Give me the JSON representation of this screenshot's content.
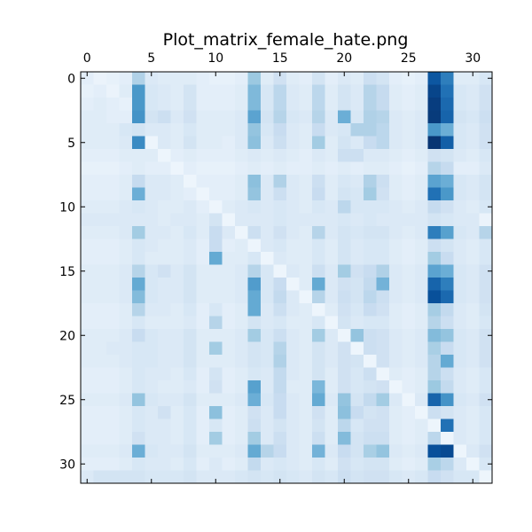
{
  "chart_data": {
    "type": "heatmap",
    "title": "Plot_matrix_female_hate.png",
    "colormap": "Blues",
    "x_axis_position": "top",
    "x_ticks": [
      0,
      5,
      10,
      15,
      20,
      25,
      30
    ],
    "y_ticks": [
      0,
      5,
      10,
      15,
      20,
      25,
      30
    ],
    "xlim": [
      -0.5,
      31.5
    ],
    "ylim": [
      31.5,
      -0.5
    ],
    "value_range": [
      0,
      1
    ],
    "size": 32,
    "matrix": [
      [
        0.1,
        0.06,
        0.08,
        0.1,
        0.32,
        0.14,
        0.12,
        0.12,
        0.12,
        0.1,
        0.08,
        0.08,
        0.1,
        0.38,
        0.12,
        0.2,
        0.12,
        0.1,
        0.18,
        0.1,
        0.14,
        0.12,
        0.22,
        0.18,
        0.1,
        0.08,
        0.1,
        0.85,
        0.7,
        0.12,
        0.12,
        0.16
      ],
      [
        0.08,
        0.1,
        0.06,
        0.12,
        0.6,
        0.16,
        0.14,
        0.12,
        0.18,
        0.1,
        0.1,
        0.1,
        0.12,
        0.45,
        0.16,
        0.28,
        0.14,
        0.12,
        0.28,
        0.12,
        0.18,
        0.14,
        0.3,
        0.25,
        0.12,
        0.1,
        0.12,
        0.92,
        0.75,
        0.16,
        0.14,
        0.2
      ],
      [
        0.1,
        0.12,
        0.1,
        0.08,
        0.6,
        0.16,
        0.14,
        0.12,
        0.18,
        0.1,
        0.1,
        0.1,
        0.12,
        0.45,
        0.16,
        0.28,
        0.14,
        0.12,
        0.28,
        0.12,
        0.18,
        0.14,
        0.3,
        0.25,
        0.12,
        0.1,
        0.12,
        0.95,
        0.78,
        0.16,
        0.14,
        0.2
      ],
      [
        0.12,
        0.12,
        0.1,
        0.1,
        0.62,
        0.18,
        0.22,
        0.14,
        0.2,
        0.12,
        0.12,
        0.12,
        0.14,
        0.55,
        0.18,
        0.3,
        0.16,
        0.14,
        0.3,
        0.14,
        0.5,
        0.16,
        0.32,
        0.3,
        0.14,
        0.12,
        0.14,
        0.96,
        0.8,
        0.18,
        0.16,
        0.22
      ],
      [
        0.12,
        0.12,
        0.12,
        0.16,
        0.18,
        0.14,
        0.14,
        0.12,
        0.16,
        0.12,
        0.12,
        0.12,
        0.14,
        0.4,
        0.16,
        0.24,
        0.14,
        0.12,
        0.24,
        0.14,
        0.16,
        0.32,
        0.32,
        0.28,
        0.14,
        0.12,
        0.14,
        0.6,
        0.5,
        0.16,
        0.14,
        0.2
      ],
      [
        0.12,
        0.12,
        0.12,
        0.14,
        0.65,
        0.05,
        0.14,
        0.12,
        0.18,
        0.12,
        0.12,
        0.1,
        0.14,
        0.42,
        0.14,
        0.22,
        0.14,
        0.12,
        0.36,
        0.12,
        0.18,
        0.14,
        0.24,
        0.28,
        0.14,
        0.12,
        0.14,
        0.98,
        0.82,
        0.16,
        0.14,
        0.2
      ],
      [
        0.1,
        0.1,
        0.1,
        0.12,
        0.12,
        0.12,
        0.05,
        0.1,
        0.12,
        0.1,
        0.1,
        0.1,
        0.12,
        0.14,
        0.12,
        0.14,
        0.12,
        0.1,
        0.14,
        0.12,
        0.22,
        0.22,
        0.14,
        0.14,
        0.12,
        0.1,
        0.12,
        0.2,
        0.18,
        0.14,
        0.12,
        0.16
      ],
      [
        0.08,
        0.08,
        0.08,
        0.1,
        0.12,
        0.1,
        0.1,
        0.05,
        0.1,
        0.08,
        0.08,
        0.08,
        0.1,
        0.12,
        0.1,
        0.12,
        0.1,
        0.1,
        0.12,
        0.1,
        0.12,
        0.1,
        0.12,
        0.12,
        0.1,
        0.08,
        0.1,
        0.3,
        0.25,
        0.1,
        0.1,
        0.14
      ],
      [
        0.1,
        0.1,
        0.1,
        0.12,
        0.25,
        0.14,
        0.14,
        0.12,
        0.05,
        0.1,
        0.1,
        0.1,
        0.12,
        0.42,
        0.14,
        0.32,
        0.14,
        0.12,
        0.22,
        0.12,
        0.16,
        0.14,
        0.32,
        0.22,
        0.12,
        0.1,
        0.12,
        0.55,
        0.5,
        0.16,
        0.14,
        0.18
      ],
      [
        0.1,
        0.1,
        0.1,
        0.12,
        0.5,
        0.14,
        0.14,
        0.12,
        0.1,
        0.05,
        0.1,
        0.1,
        0.12,
        0.4,
        0.14,
        0.22,
        0.14,
        0.12,
        0.24,
        0.12,
        0.18,
        0.16,
        0.36,
        0.2,
        0.12,
        0.1,
        0.12,
        0.75,
        0.6,
        0.16,
        0.14,
        0.18
      ],
      [
        0.12,
        0.12,
        0.12,
        0.14,
        0.16,
        0.14,
        0.12,
        0.12,
        0.14,
        0.1,
        0.05,
        0.12,
        0.14,
        0.16,
        0.14,
        0.16,
        0.14,
        0.12,
        0.16,
        0.14,
        0.28,
        0.16,
        0.16,
        0.16,
        0.14,
        0.12,
        0.14,
        0.25,
        0.2,
        0.14,
        0.12,
        0.16
      ],
      [
        0.14,
        0.14,
        0.14,
        0.14,
        0.14,
        0.14,
        0.12,
        0.14,
        0.14,
        0.12,
        0.18,
        0.05,
        0.14,
        0.14,
        0.14,
        0.16,
        0.14,
        0.14,
        0.14,
        0.14,
        0.16,
        0.14,
        0.16,
        0.14,
        0.14,
        0.14,
        0.14,
        0.18,
        0.16,
        0.14,
        0.14,
        0.06
      ],
      [
        0.12,
        0.12,
        0.12,
        0.14,
        0.36,
        0.14,
        0.14,
        0.12,
        0.16,
        0.12,
        0.24,
        0.14,
        0.05,
        0.22,
        0.14,
        0.2,
        0.14,
        0.12,
        0.3,
        0.14,
        0.18,
        0.16,
        0.18,
        0.18,
        0.14,
        0.12,
        0.14,
        0.7,
        0.56,
        0.16,
        0.14,
        0.3
      ],
      [
        0.1,
        0.1,
        0.1,
        0.12,
        0.16,
        0.14,
        0.12,
        0.12,
        0.14,
        0.1,
        0.24,
        0.1,
        0.12,
        0.05,
        0.14,
        0.16,
        0.12,
        0.12,
        0.16,
        0.12,
        0.18,
        0.14,
        0.16,
        0.16,
        0.12,
        0.1,
        0.12,
        0.22,
        0.18,
        0.14,
        0.12,
        0.16
      ],
      [
        0.1,
        0.1,
        0.1,
        0.12,
        0.16,
        0.12,
        0.12,
        0.12,
        0.14,
        0.1,
        0.52,
        0.12,
        0.12,
        0.16,
        0.05,
        0.14,
        0.12,
        0.12,
        0.16,
        0.12,
        0.18,
        0.14,
        0.16,
        0.16,
        0.12,
        0.1,
        0.12,
        0.36,
        0.24,
        0.14,
        0.12,
        0.16
      ],
      [
        0.12,
        0.12,
        0.12,
        0.14,
        0.3,
        0.16,
        0.2,
        0.14,
        0.18,
        0.12,
        0.12,
        0.12,
        0.14,
        0.3,
        0.16,
        0.05,
        0.14,
        0.12,
        0.22,
        0.14,
        0.36,
        0.2,
        0.24,
        0.32,
        0.14,
        0.12,
        0.14,
        0.55,
        0.5,
        0.16,
        0.14,
        0.2
      ],
      [
        0.12,
        0.12,
        0.12,
        0.14,
        0.52,
        0.16,
        0.14,
        0.14,
        0.18,
        0.12,
        0.12,
        0.12,
        0.14,
        0.58,
        0.16,
        0.24,
        0.05,
        0.12,
        0.52,
        0.14,
        0.2,
        0.18,
        0.26,
        0.48,
        0.14,
        0.12,
        0.14,
        0.8,
        0.7,
        0.16,
        0.14,
        0.2
      ],
      [
        0.12,
        0.12,
        0.12,
        0.14,
        0.44,
        0.16,
        0.14,
        0.14,
        0.18,
        0.12,
        0.12,
        0.12,
        0.14,
        0.52,
        0.16,
        0.26,
        0.14,
        0.05,
        0.3,
        0.14,
        0.22,
        0.18,
        0.28,
        0.22,
        0.14,
        0.12,
        0.14,
        0.88,
        0.78,
        0.16,
        0.14,
        0.2
      ],
      [
        0.1,
        0.1,
        0.1,
        0.12,
        0.3,
        0.14,
        0.14,
        0.12,
        0.16,
        0.1,
        0.16,
        0.1,
        0.12,
        0.52,
        0.14,
        0.22,
        0.14,
        0.12,
        0.05,
        0.12,
        0.2,
        0.16,
        0.24,
        0.2,
        0.12,
        0.1,
        0.12,
        0.35,
        0.26,
        0.14,
        0.12,
        0.18
      ],
      [
        0.1,
        0.1,
        0.1,
        0.12,
        0.16,
        0.12,
        0.12,
        0.12,
        0.14,
        0.1,
        0.3,
        0.1,
        0.12,
        0.18,
        0.14,
        0.16,
        0.12,
        0.12,
        0.16,
        0.05,
        0.18,
        0.14,
        0.16,
        0.16,
        0.12,
        0.1,
        0.12,
        0.3,
        0.22,
        0.14,
        0.12,
        0.16
      ],
      [
        0.12,
        0.12,
        0.12,
        0.14,
        0.24,
        0.16,
        0.14,
        0.14,
        0.18,
        0.12,
        0.12,
        0.12,
        0.14,
        0.36,
        0.16,
        0.22,
        0.14,
        0.12,
        0.36,
        0.14,
        0.05,
        0.4,
        0.22,
        0.2,
        0.14,
        0.12,
        0.14,
        0.44,
        0.4,
        0.16,
        0.14,
        0.2
      ],
      [
        0.12,
        0.12,
        0.14,
        0.14,
        0.16,
        0.16,
        0.14,
        0.14,
        0.18,
        0.12,
        0.36,
        0.12,
        0.14,
        0.18,
        0.16,
        0.3,
        0.14,
        0.12,
        0.18,
        0.14,
        0.2,
        0.05,
        0.22,
        0.2,
        0.14,
        0.12,
        0.14,
        0.34,
        0.24,
        0.16,
        0.14,
        0.2
      ],
      [
        0.12,
        0.12,
        0.12,
        0.14,
        0.16,
        0.16,
        0.14,
        0.14,
        0.18,
        0.12,
        0.12,
        0.12,
        0.14,
        0.18,
        0.16,
        0.32,
        0.14,
        0.12,
        0.18,
        0.14,
        0.2,
        0.18,
        0.05,
        0.2,
        0.14,
        0.12,
        0.14,
        0.3,
        0.52,
        0.16,
        0.14,
        0.2
      ],
      [
        0.1,
        0.1,
        0.1,
        0.12,
        0.16,
        0.14,
        0.14,
        0.12,
        0.16,
        0.1,
        0.18,
        0.1,
        0.12,
        0.16,
        0.14,
        0.26,
        0.14,
        0.12,
        0.18,
        0.12,
        0.2,
        0.16,
        0.22,
        0.05,
        0.12,
        0.1,
        0.12,
        0.3,
        0.22,
        0.14,
        0.12,
        0.16
      ],
      [
        0.1,
        0.1,
        0.1,
        0.12,
        0.16,
        0.14,
        0.12,
        0.12,
        0.14,
        0.1,
        0.2,
        0.1,
        0.12,
        0.56,
        0.14,
        0.26,
        0.12,
        0.12,
        0.46,
        0.12,
        0.2,
        0.16,
        0.18,
        0.2,
        0.05,
        0.1,
        0.12,
        0.38,
        0.26,
        0.14,
        0.12,
        0.16
      ],
      [
        0.12,
        0.12,
        0.12,
        0.14,
        0.4,
        0.16,
        0.14,
        0.14,
        0.18,
        0.12,
        0.12,
        0.12,
        0.14,
        0.5,
        0.16,
        0.24,
        0.14,
        0.12,
        0.52,
        0.14,
        0.4,
        0.18,
        0.26,
        0.36,
        0.14,
        0.05,
        0.14,
        0.8,
        0.62,
        0.16,
        0.14,
        0.2
      ],
      [
        0.1,
        0.1,
        0.1,
        0.12,
        0.16,
        0.14,
        0.2,
        0.12,
        0.16,
        0.1,
        0.42,
        0.1,
        0.12,
        0.2,
        0.14,
        0.24,
        0.14,
        0.12,
        0.2,
        0.12,
        0.42,
        0.24,
        0.18,
        0.2,
        0.12,
        0.1,
        0.05,
        0.22,
        0.18,
        0.14,
        0.12,
        0.16
      ],
      [
        0.1,
        0.1,
        0.1,
        0.12,
        0.16,
        0.14,
        0.14,
        0.12,
        0.16,
        0.1,
        0.16,
        0.1,
        0.12,
        0.22,
        0.14,
        0.18,
        0.14,
        0.12,
        0.18,
        0.12,
        0.28,
        0.16,
        0.2,
        0.2,
        0.12,
        0.1,
        0.12,
        0.05,
        0.75,
        0.14,
        0.12,
        0.16
      ],
      [
        0.1,
        0.1,
        0.1,
        0.12,
        0.2,
        0.14,
        0.14,
        0.12,
        0.16,
        0.1,
        0.36,
        0.1,
        0.12,
        0.36,
        0.14,
        0.22,
        0.14,
        0.12,
        0.22,
        0.12,
        0.44,
        0.18,
        0.22,
        0.22,
        0.12,
        0.1,
        0.12,
        0.28,
        0.05,
        0.14,
        0.12,
        0.16
      ],
      [
        0.12,
        0.12,
        0.12,
        0.14,
        0.5,
        0.16,
        0.14,
        0.14,
        0.18,
        0.12,
        0.12,
        0.12,
        0.14,
        0.52,
        0.3,
        0.24,
        0.14,
        0.12,
        0.48,
        0.14,
        0.24,
        0.18,
        0.34,
        0.4,
        0.14,
        0.12,
        0.14,
        0.88,
        0.9,
        0.05,
        0.14,
        0.2
      ],
      [
        0.1,
        0.1,
        0.1,
        0.12,
        0.16,
        0.14,
        0.14,
        0.12,
        0.16,
        0.1,
        0.14,
        0.1,
        0.12,
        0.26,
        0.14,
        0.16,
        0.14,
        0.12,
        0.16,
        0.12,
        0.2,
        0.16,
        0.18,
        0.18,
        0.12,
        0.1,
        0.12,
        0.34,
        0.28,
        0.14,
        0.05,
        0.16
      ],
      [
        0.14,
        0.18,
        0.18,
        0.18,
        0.18,
        0.16,
        0.16,
        0.16,
        0.18,
        0.14,
        0.14,
        0.14,
        0.16,
        0.18,
        0.16,
        0.18,
        0.16,
        0.14,
        0.18,
        0.16,
        0.22,
        0.18,
        0.2,
        0.2,
        0.16,
        0.14,
        0.16,
        0.24,
        0.2,
        0.16,
        0.16,
        0.05
      ]
    ]
  }
}
